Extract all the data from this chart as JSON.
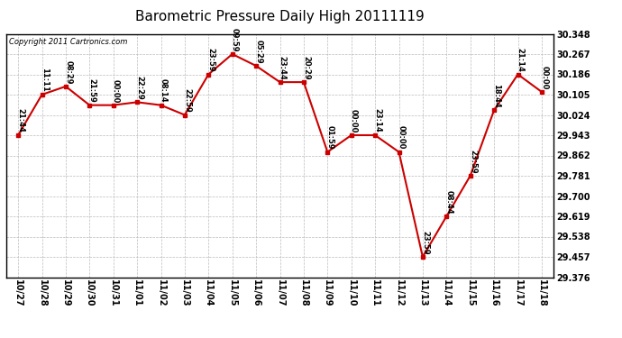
{
  "title": "Barometric Pressure Daily High 20111119",
  "copyright": "Copyright 2011 Cartronics.com",
  "x_labels": [
    "10/27",
    "10/28",
    "10/29",
    "10/30",
    "10/31",
    "11/01",
    "11/02",
    "11/03",
    "11/04",
    "11/05",
    "11/06",
    "11/07",
    "11/08",
    "11/09",
    "11/10",
    "11/11",
    "11/12",
    "11/13",
    "11/14",
    "11/15",
    "11/16",
    "11/17",
    "11/18"
  ],
  "y_values": [
    29.943,
    30.105,
    30.138,
    30.063,
    30.063,
    30.075,
    30.063,
    30.024,
    30.186,
    30.267,
    30.22,
    30.155,
    30.155,
    29.876,
    29.943,
    29.943,
    29.876,
    29.457,
    29.619,
    29.781,
    30.043,
    30.186,
    30.116
  ],
  "time_labels": [
    "21:44",
    "11:11",
    "08:29",
    "21:59",
    "00:00",
    "22:29",
    "08:14",
    "22:59",
    "23:59",
    "09:59",
    "05:29",
    "23:44",
    "20:29",
    "01:59",
    "00:00",
    "23:14",
    "00:00",
    "23:59",
    "08:44",
    "23:59",
    "18:44",
    "21:14",
    "00:00"
  ],
  "y_min": 29.376,
  "y_max": 30.348,
  "y_ticks": [
    29.376,
    29.457,
    29.538,
    29.619,
    29.7,
    29.781,
    29.862,
    29.943,
    30.024,
    30.105,
    30.186,
    30.267,
    30.348
  ],
  "line_color": "#cc0000",
  "marker_color": "#cc0000",
  "bg_color": "#ffffff",
  "grid_color": "#bbbbbb",
  "title_fontsize": 11,
  "tick_fontsize": 7,
  "annotation_fontsize": 6,
  "copyright_fontsize": 6
}
